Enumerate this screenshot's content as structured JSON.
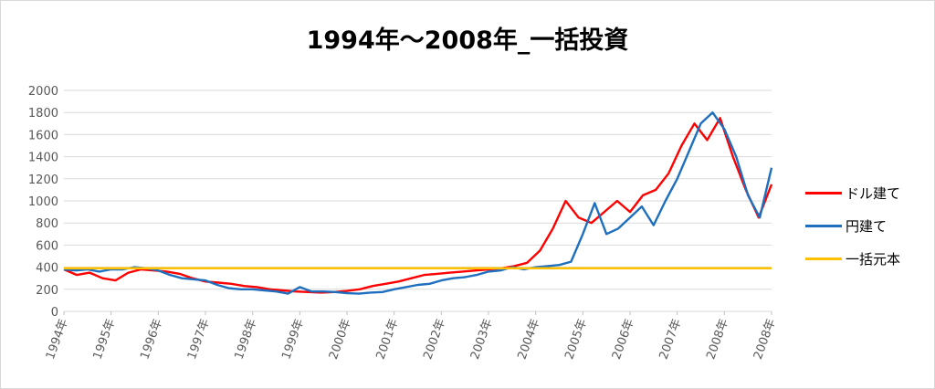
{
  "chart_data": {
    "type": "line",
    "title": "1994年～2008年_一括投資",
    "xlabel": "",
    "ylabel": "",
    "ylim": [
      0,
      2000
    ],
    "yticks": [
      0,
      200,
      400,
      600,
      800,
      1000,
      1200,
      1400,
      1600,
      1800,
      2000
    ],
    "xticks": [
      "1994年",
      "1995年",
      "1996年",
      "1997年",
      "1998年",
      "1999年",
      "2000年",
      "2001年",
      "2002年",
      "2003年",
      "2004年",
      "2005年",
      "2006年",
      "2007年",
      "2008年",
      "2008年"
    ],
    "grid": true,
    "legend_position": "right",
    "series": [
      {
        "name": "ドル建て",
        "color": "#ff0000",
        "values": [
          380,
          330,
          350,
          300,
          280,
          350,
          380,
          370,
          360,
          340,
          300,
          270,
          260,
          250,
          230,
          220,
          200,
          190,
          180,
          175,
          170,
          175,
          185,
          200,
          230,
          250,
          270,
          300,
          330,
          340,
          350,
          360,
          370,
          380,
          390,
          410,
          440,
          550,
          750,
          1000,
          850,
          800,
          900,
          1000,
          900,
          1050,
          1100,
          1250,
          1500,
          1700,
          1550,
          1750,
          1400,
          1100,
          850,
          1150
        ]
      },
      {
        "name": "円建て",
        "color": "#1f6fbf",
        "values": [
          380,
          370,
          380,
          360,
          380,
          380,
          400,
          390,
          370,
          330,
          300,
          290,
          280,
          240,
          210,
          200,
          200,
          190,
          180,
          160,
          220,
          180,
          180,
          175,
          165,
          160,
          170,
          175,
          200,
          220,
          240,
          250,
          280,
          300,
          310,
          330,
          360,
          370,
          400,
          380,
          400,
          410,
          420,
          450,
          700,
          980,
          700,
          750,
          850,
          950,
          780,
          1000,
          1200,
          1450,
          1700,
          1800,
          1650,
          1400,
          1050,
          850,
          1300
        ]
      },
      {
        "name": "一括元本",
        "color": "#ffc000",
        "values": [
          390,
          390
        ]
      }
    ]
  }
}
